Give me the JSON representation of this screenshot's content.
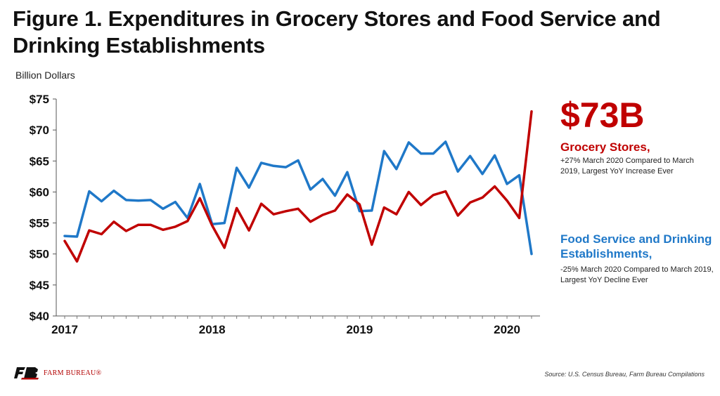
{
  "title": "Figure 1. Expenditures in Grocery Stores and Food Service and Drinking Establishments",
  "unit_label": "Billion Dollars",
  "colors": {
    "grocery": "#c00000",
    "food_service": "#1f78c8",
    "accent_text": "#c00000",
    "blue_text": "#1f78c8"
  },
  "annotations": {
    "big_value": "$73B",
    "grocery_title": "Grocery Stores,",
    "grocery_text": "+27% March 2020 Compared to March 2019, Largest YoY Increase Ever",
    "food_title": "Food Service and Drinking Establishments,",
    "food_text": "-25% March 2020 Compared to March 2019, Largest YoY Decline Ever"
  },
  "source": "Source: U.S. Census Bureau, Farm Bureau Compilations",
  "logo": {
    "text": "FARM BUREAU®",
    "icon": "farm-bureau-logo-icon"
  },
  "chart_data": {
    "type": "line",
    "ylim": [
      40,
      75
    ],
    "yticks": [
      40,
      45,
      50,
      55,
      60,
      65,
      70,
      75
    ],
    "ytick_labels": [
      "$40",
      "$45",
      "$50",
      "$55",
      "$60",
      "$65",
      "$70",
      "$75"
    ],
    "xtick_labels": [
      "2017",
      "2018",
      "2019",
      "2020"
    ],
    "x_start": "2017-01",
    "x_end": "2020-03",
    "x": [
      "2017-01",
      "2017-02",
      "2017-03",
      "2017-04",
      "2017-05",
      "2017-06",
      "2017-07",
      "2017-08",
      "2017-09",
      "2017-10",
      "2017-11",
      "2017-12",
      "2018-01",
      "2018-02",
      "2018-03",
      "2018-04",
      "2018-05",
      "2018-06",
      "2018-07",
      "2018-08",
      "2018-09",
      "2018-10",
      "2018-11",
      "2018-12",
      "2019-01",
      "2019-02",
      "2019-03",
      "2019-04",
      "2019-05",
      "2019-06",
      "2019-07",
      "2019-08",
      "2019-09",
      "2019-10",
      "2019-11",
      "2019-12",
      "2020-01",
      "2020-02",
      "2020-03"
    ],
    "grid": false,
    "series": [
      {
        "name": "Food Service and Drinking Establishments",
        "color": "#1f78c8",
        "values": [
          52.9,
          52.8,
          60.1,
          58.5,
          60.2,
          58.7,
          58.6,
          58.7,
          57.3,
          58.4,
          55.8,
          61.3,
          54.8,
          55.0,
          63.9,
          60.7,
          64.7,
          64.2,
          64.0,
          65.1,
          60.4,
          62.1,
          59.4,
          63.2,
          56.9,
          57.0,
          66.6,
          63.7,
          68.0,
          66.2,
          66.2,
          68.1,
          63.3,
          65.8,
          62.9,
          65.9,
          61.3,
          62.7,
          50.0
        ]
      },
      {
        "name": "Grocery Stores",
        "color": "#c00000",
        "values": [
          52.1,
          48.8,
          53.8,
          53.2,
          55.2,
          53.7,
          54.7,
          54.7,
          53.9,
          54.4,
          55.3,
          59.0,
          54.6,
          51.0,
          57.4,
          53.8,
          58.1,
          56.4,
          56.9,
          57.3,
          55.2,
          56.3,
          57.0,
          59.6,
          58.0,
          51.5,
          57.5,
          56.4,
          60.0,
          57.9,
          59.5,
          60.1,
          56.2,
          58.3,
          59.1,
          60.9,
          58.6,
          55.8,
          73.0
        ]
      }
    ]
  }
}
